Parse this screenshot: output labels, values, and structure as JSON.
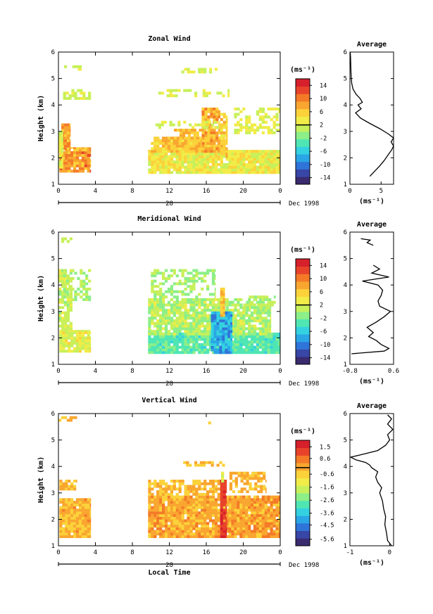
{
  "colormap": [
    "#3a2a6e",
    "#3846a6",
    "#2f74d8",
    "#2aa6e6",
    "#34d2e0",
    "#4fe6b4",
    "#8cef88",
    "#c8f05a",
    "#f1ec48",
    "#fcd23a",
    "#f9a630",
    "#f47a28",
    "#e8432a",
    "#d6202c"
  ],
  "line_color": "#000000",
  "chart_data": [
    {
      "type": "heatmap",
      "title": "Zonal Wind",
      "ylabel": "Height (km)",
      "xlabel": "",
      "x_ticks": [
        "0",
        "4",
        "8",
        "12",
        "16",
        "20",
        "0"
      ],
      "x_range": [
        0,
        24
      ],
      "y_ticks": [
        "1",
        "2",
        "3",
        "4",
        "5",
        "6"
      ],
      "y_range": [
        1,
        6
      ],
      "date_day": "28",
      "date_label": "Dec 1998",
      "unit": "(ms⁻¹)",
      "colorbar": {
        "ticks": [
          "14",
          "10",
          "6",
          "2",
          "-2",
          "-6",
          "-10",
          "-14"
        ],
        "range": [
          -16,
          16
        ],
        "divider": 2
      },
      "regions": [
        {
          "x": [
            0.1,
            3.5
          ],
          "y": [
            1.45,
            2.4
          ],
          "v": [
            5,
            12
          ]
        },
        {
          "x": [
            0.3,
            1.3
          ],
          "y": [
            2.3,
            3.3
          ],
          "v": [
            6,
            11
          ]
        },
        {
          "x": [
            0.0,
            0.5
          ],
          "y": [
            1.6,
            3.0
          ],
          "v": [
            1,
            4
          ]
        },
        {
          "x": [
            0.5,
            3.5
          ],
          "y": [
            4.2,
            4.6
          ],
          "v": [
            1,
            3
          ],
          "d": 0.5
        },
        {
          "x": [
            0.0,
            2.5
          ],
          "y": [
            5.3,
            5.5
          ],
          "v": [
            1,
            3
          ],
          "d": 0.4
        },
        {
          "x": [
            9.7,
            24.0
          ],
          "y": [
            1.4,
            2.3
          ],
          "v": [
            1,
            6
          ]
        },
        {
          "x": [
            10.0,
            18.0
          ],
          "y": [
            2.2,
            2.8
          ],
          "v": [
            4,
            8
          ]
        },
        {
          "x": [
            12.5,
            16.0
          ],
          "y": [
            2.7,
            3.1
          ],
          "v": [
            5,
            9
          ],
          "d": 0.6
        },
        {
          "x": [
            15.5,
            17.5
          ],
          "y": [
            2.2,
            3.9
          ],
          "v": [
            5,
            10
          ],
          "d": 0.8
        },
        {
          "x": [
            17.5,
            18.3
          ],
          "y": [
            2.0,
            3.7
          ],
          "v": [
            4,
            8
          ],
          "d": 0.8
        },
        {
          "x": [
            19.0,
            24.0
          ],
          "y": [
            2.9,
            3.9
          ],
          "v": [
            1,
            4
          ],
          "d": 0.5
        },
        {
          "x": [
            10.5,
            17.5
          ],
          "y": [
            3.1,
            3.4
          ],
          "v": [
            1,
            3
          ],
          "d": 0.4
        },
        {
          "x": [
            10.5,
            18.5
          ],
          "y": [
            4.3,
            4.6
          ],
          "v": [
            1,
            3
          ],
          "d": 0.4
        },
        {
          "x": [
            13.0,
            18.0
          ],
          "y": [
            5.2,
            5.4
          ],
          "v": [
            1,
            3
          ],
          "d": 0.4
        }
      ],
      "profile": {
        "xlim": [
          0,
          7
        ],
        "x_ticks": [
          "0",
          "5"
        ],
        "x_ticks_v": [
          0,
          5
        ],
        "y": [
          1.3,
          1.5,
          1.7,
          1.9,
          2.1,
          2.3,
          2.45,
          2.6,
          2.75,
          2.9,
          3.1,
          3.3,
          3.5,
          3.7,
          3.85,
          4.0,
          4.1,
          4.25,
          4.4,
          4.6,
          4.8,
          5.0,
          5.4,
          5.8,
          6.0
        ],
        "x": [
          3.2,
          4.0,
          4.8,
          5.5,
          6.1,
          6.7,
          7.0,
          6.6,
          7.0,
          6.2,
          4.8,
          3.2,
          1.7,
          0.9,
          1.8,
          1.3,
          2.0,
          1.6,
          1.0,
          0.5,
          0.3,
          0.2,
          0.15,
          0.1,
          0.05
        ]
      }
    },
    {
      "type": "heatmap",
      "title": "Meridional Wind",
      "ylabel": "Height (km)",
      "xlabel": "",
      "x_ticks": [
        "0",
        "4",
        "8",
        "12",
        "16",
        "20",
        "0"
      ],
      "x_range": [
        0,
        24
      ],
      "y_ticks": [
        "1",
        "2",
        "3",
        "4",
        "5",
        "6"
      ],
      "y_range": [
        1,
        6
      ],
      "date_day": "28",
      "date_label": "Dec 1998",
      "unit": "(ms⁻¹)",
      "colorbar": {
        "ticks": [
          "14",
          "10",
          "6",
          "2",
          "-2",
          "-6",
          "-10",
          "-14"
        ],
        "range": [
          -16,
          16
        ],
        "divider": 2
      },
      "regions": [
        {
          "x": [
            0.1,
            3.5
          ],
          "y": [
            1.45,
            2.3
          ],
          "v": [
            0,
            5
          ]
        },
        {
          "x": [
            0.0,
            1.5
          ],
          "y": [
            2.3,
            4.6
          ],
          "v": [
            -1,
            3
          ],
          "d": 0.7
        },
        {
          "x": [
            0.5,
            3.5
          ],
          "y": [
            3.4,
            4.6
          ],
          "v": [
            -1,
            2
          ],
          "d": 0.4
        },
        {
          "x": [
            0.0,
            1.5
          ],
          "y": [
            5.6,
            5.8
          ],
          "v": [
            0,
            2
          ],
          "d": 0.5
        },
        {
          "x": [
            9.7,
            24.0
          ],
          "y": [
            1.4,
            2.2
          ],
          "v": [
            -5,
            -1
          ]
        },
        {
          "x": [
            9.7,
            23.0
          ],
          "y": [
            2.1,
            3.5
          ],
          "v": [
            -2,
            3
          ],
          "d": 0.85
        },
        {
          "x": [
            16.5,
            18.8
          ],
          "y": [
            1.4,
            3.0
          ],
          "v": [
            -10,
            -5
          ]
        },
        {
          "x": [
            10.0,
            17.0
          ],
          "y": [
            3.4,
            4.6
          ],
          "v": [
            -2,
            2
          ],
          "d": 0.4
        },
        {
          "x": [
            17.5,
            18.0
          ],
          "y": [
            2.8,
            3.9
          ],
          "v": [
            4,
            8
          ]
        },
        {
          "x": [
            20.0,
            23.5
          ],
          "y": [
            3.0,
            3.6
          ],
          "v": [
            -1,
            2
          ],
          "d": 0.5
        }
      ],
      "profile": {
        "xlim": [
          -0.8,
          0.6
        ],
        "x_ticks": [
          "-0.8",
          "0.6"
        ],
        "x_ticks_v": [
          -0.8,
          0.6
        ],
        "y": [
          1.4,
          1.5,
          1.6,
          1.75,
          1.9,
          2.05,
          2.2,
          2.4,
          2.6,
          2.8,
          3.0,
          3.2,
          3.4,
          3.6,
          3.8,
          4.0,
          4.15,
          4.3,
          4.45,
          4.6,
          4.75
        ],
        "x": [
          -0.75,
          0.3,
          0.45,
          0.2,
          0.05,
          -0.2,
          -0.05,
          -0.25,
          0.05,
          0.3,
          0.5,
          0.15,
          0.1,
          0.2,
          0.25,
          0.1,
          -0.4,
          0.45,
          -0.1,
          0.15,
          -0.05
        ],
        "y2": [
          5.5,
          5.6,
          5.7,
          5.75
        ],
        "x2": [
          -0.05,
          -0.25,
          -0.15,
          -0.45
        ]
      }
    },
    {
      "type": "heatmap",
      "title": "Vertical Wind",
      "ylabel": "Height (km)",
      "xlabel": "Local Time",
      "x_ticks": [
        "0",
        "4",
        "8",
        "12",
        "16",
        "20",
        "0"
      ],
      "x_range": [
        0,
        24
      ],
      "y_ticks": [
        "1",
        "2",
        "3",
        "4",
        "5",
        "6"
      ],
      "y_range": [
        1,
        6
      ],
      "date_day": "28",
      "date_label": "Dec 1998",
      "unit": "(ms⁻¹)",
      "colorbar": {
        "ticks": [
          "1.5",
          "0.6",
          "-0.6",
          "-1.6",
          "-2.6",
          "-3.6",
          "-4.5",
          "-5.6"
        ],
        "range": [
          -6.1,
          2.0
        ],
        "divider": -0.1
      },
      "regions": [
        {
          "x": [
            0.1,
            3.5
          ],
          "y": [
            1.3,
            2.8
          ],
          "v": [
            -0.8,
            0.3
          ]
        },
        {
          "x": [
            0.1,
            2.0
          ],
          "y": [
            3.1,
            3.5
          ],
          "v": [
            -0.8,
            0.2
          ],
          "d": 0.6
        },
        {
          "x": [
            0.0,
            2.0
          ],
          "y": [
            5.7,
            5.9
          ],
          "v": [
            -0.7,
            0.2
          ],
          "d": 0.5
        },
        {
          "x": [
            9.7,
            24.0
          ],
          "y": [
            1.3,
            2.9
          ],
          "v": [
            -0.6,
            0.5
          ]
        },
        {
          "x": [
            9.7,
            18.0
          ],
          "y": [
            2.9,
            3.5
          ],
          "v": [
            -0.7,
            0.2
          ],
          "d": 0.7
        },
        {
          "x": [
            17.5,
            18.2
          ],
          "y": [
            1.3,
            3.5
          ],
          "v": [
            1.0,
            1.6
          ]
        },
        {
          "x": [
            17.6,
            17.9
          ],
          "y": [
            3.4,
            3.8
          ],
          "v": [
            -1.8,
            -1.2
          ]
        },
        {
          "x": [
            18.5,
            22.5
          ],
          "y": [
            3.0,
            3.8
          ],
          "v": [
            -0.6,
            0.2
          ],
          "d": 0.6
        },
        {
          "x": [
            13.5,
            18.0
          ],
          "y": [
            4.0,
            4.2
          ],
          "v": [
            -0.6,
            0.0
          ],
          "d": 0.6
        },
        {
          "x": [
            16.2,
            16.5
          ],
          "y": [
            5.6,
            5.7
          ],
          "v": [
            -0.5,
            0.0
          ]
        }
      ],
      "profile": {
        "xlim": [
          -1.0,
          0.1
        ],
        "x_ticks": [
          "-1",
          "0"
        ],
        "x_ticks_v": [
          -1,
          0
        ],
        "y": [
          1.0,
          1.2,
          1.5,
          1.8,
          2.1,
          2.4,
          2.7,
          3.0,
          3.2,
          3.4,
          3.6,
          3.8,
          3.95,
          4.05,
          4.15,
          4.25,
          4.35,
          4.45,
          4.6,
          4.8,
          5.0,
          5.2,
          5.4,
          5.6,
          5.8,
          5.95
        ],
        "x": [
          0.05,
          -0.05,
          -0.08,
          -0.12,
          -0.1,
          -0.15,
          -0.18,
          -0.25,
          -0.2,
          -0.3,
          -0.35,
          -0.3,
          -0.45,
          -0.5,
          -0.6,
          -0.85,
          -0.98,
          -0.7,
          -0.3,
          -0.1,
          0.0,
          -0.05,
          0.08,
          -0.05,
          0.05,
          -0.05
        ]
      }
    }
  ]
}
